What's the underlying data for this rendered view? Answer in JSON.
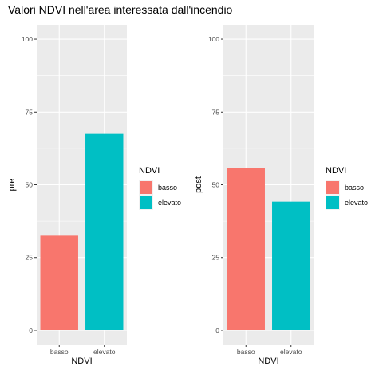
{
  "chart_data": {
    "title": "Valori NDVI nell'area interessata dall'incendio",
    "colors": {
      "basso": "#F8766D",
      "elevato": "#00BFC4",
      "panel": "#EBEBEB",
      "grid": "#FFFFFF"
    },
    "panels": [
      {
        "type": "bar",
        "categories": [
          "basso",
          "elevato"
        ],
        "values": [
          32.5,
          67.5
        ],
        "xlabel": "NDVI",
        "ylabel": "pre",
        "ylim": [
          0,
          100
        ],
        "yticks": [
          0,
          25,
          50,
          75,
          100
        ],
        "legend": {
          "title": "NDVI",
          "entries": [
            "basso",
            "elevato"
          ],
          "position": "right"
        }
      },
      {
        "type": "bar",
        "categories": [
          "basso",
          "elevato"
        ],
        "values": [
          55.8,
          44.2
        ],
        "xlabel": "NDVI",
        "ylabel": "post",
        "ylim": [
          0,
          100
        ],
        "yticks": [
          0,
          25,
          50,
          75,
          100
        ],
        "legend": {
          "title": "NDVI",
          "entries": [
            "basso",
            "elevato"
          ],
          "position": "right"
        }
      }
    ]
  }
}
